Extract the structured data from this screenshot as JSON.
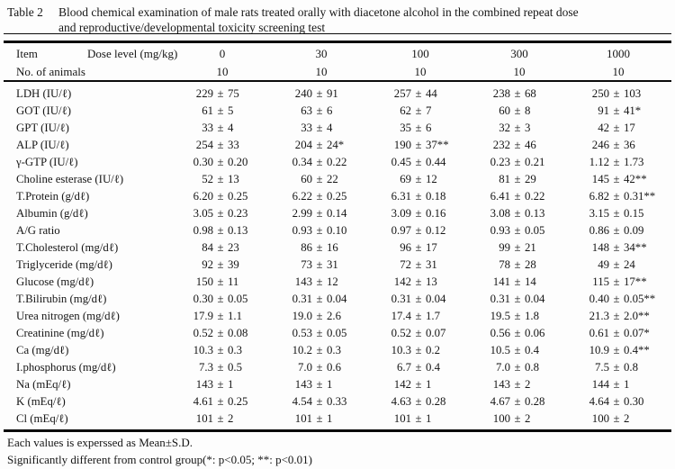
{
  "caption": {
    "table_label": "Table 2",
    "line1": "Blood chemical examination of male rats treated orally with diacetone alcohol in the combined repeat dose",
    "line2": "and reproductive/developmental toxicity screening test"
  },
  "header": {
    "item_label": "Item",
    "dose_label": "Dose level (mg/kg)",
    "doses": [
      "0",
      "30",
      "100",
      "300",
      "1000"
    ],
    "animals_label": "No. of animals",
    "animals": [
      "10",
      "10",
      "10",
      "10",
      "10"
    ]
  },
  "rows": [
    {
      "item": "LDH (IU/ℓ)",
      "values": [
        {
          "m": "229",
          "s": "75",
          "f": ""
        },
        {
          "m": "240",
          "s": "91",
          "f": ""
        },
        {
          "m": "257",
          "s": "44",
          "f": ""
        },
        {
          "m": "238",
          "s": "68",
          "f": ""
        },
        {
          "m": "250",
          "s": "103",
          "f": ""
        }
      ]
    },
    {
      "item": "GOT (IU/ℓ)",
      "values": [
        {
          "m": "61",
          "s": "5",
          "f": ""
        },
        {
          "m": "63",
          "s": "6",
          "f": ""
        },
        {
          "m": "62",
          "s": "7",
          "f": ""
        },
        {
          "m": "60",
          "s": "8",
          "f": ""
        },
        {
          "m": "91",
          "s": "41",
          "f": "*"
        }
      ]
    },
    {
      "item": "GPT (IU/ℓ)",
      "values": [
        {
          "m": "33",
          "s": "4",
          "f": ""
        },
        {
          "m": "33",
          "s": "4",
          "f": ""
        },
        {
          "m": "35",
          "s": "6",
          "f": ""
        },
        {
          "m": "32",
          "s": "3",
          "f": ""
        },
        {
          "m": "42",
          "s": "17",
          "f": ""
        }
      ]
    },
    {
      "item": "ALP (IU/ℓ)",
      "values": [
        {
          "m": "254",
          "s": "33",
          "f": ""
        },
        {
          "m": "204",
          "s": "24",
          "f": "*"
        },
        {
          "m": "190",
          "s": "37",
          "f": "**"
        },
        {
          "m": "232",
          "s": "46",
          "f": ""
        },
        {
          "m": "246",
          "s": "36",
          "f": ""
        }
      ]
    },
    {
      "item": "γ-GTP (IU/ℓ)",
      "values": [
        {
          "m": "0.30",
          "s": "0.20",
          "f": ""
        },
        {
          "m": "0.34",
          "s": "0.22",
          "f": ""
        },
        {
          "m": "0.45",
          "s": "0.44",
          "f": ""
        },
        {
          "m": "0.23",
          "s": "0.21",
          "f": ""
        },
        {
          "m": "1.12",
          "s": "1.73",
          "f": ""
        }
      ]
    },
    {
      "item": "Choline esterase (IU/ℓ)",
      "values": [
        {
          "m": "52",
          "s": "13",
          "f": ""
        },
        {
          "m": "60",
          "s": "22",
          "f": ""
        },
        {
          "m": "69",
          "s": "12",
          "f": ""
        },
        {
          "m": "81",
          "s": "29",
          "f": ""
        },
        {
          "m": "145",
          "s": "42",
          "f": "**"
        }
      ]
    },
    {
      "item": "T.Protein (g/dℓ)",
      "values": [
        {
          "m": "6.20",
          "s": "0.25",
          "f": ""
        },
        {
          "m": "6.22",
          "s": "0.25",
          "f": ""
        },
        {
          "m": "6.31",
          "s": "0.18",
          "f": ""
        },
        {
          "m": "6.41",
          "s": "0.22",
          "f": ""
        },
        {
          "m": "6.82",
          "s": "0.31",
          "f": "**"
        }
      ]
    },
    {
      "item": "Albumin (g/dℓ)",
      "values": [
        {
          "m": "3.05",
          "s": "0.23",
          "f": ""
        },
        {
          "m": "2.99",
          "s": "0.14",
          "f": ""
        },
        {
          "m": "3.09",
          "s": "0.16",
          "f": ""
        },
        {
          "m": "3.08",
          "s": "0.13",
          "f": ""
        },
        {
          "m": "3.15",
          "s": "0.15",
          "f": ""
        }
      ]
    },
    {
      "item": "A/G ratio",
      "values": [
        {
          "m": "0.98",
          "s": "0.13",
          "f": ""
        },
        {
          "m": "0.93",
          "s": "0.10",
          "f": ""
        },
        {
          "m": "0.97",
          "s": "0.12",
          "f": ""
        },
        {
          "m": "0.93",
          "s": "0.05",
          "f": ""
        },
        {
          "m": "0.86",
          "s": "0.09",
          "f": ""
        }
      ]
    },
    {
      "item": "T.Cholesterol (mg/dℓ)",
      "values": [
        {
          "m": "84",
          "s": "23",
          "f": ""
        },
        {
          "m": "86",
          "s": "16",
          "f": ""
        },
        {
          "m": "96",
          "s": "17",
          "f": ""
        },
        {
          "m": "99",
          "s": "21",
          "f": ""
        },
        {
          "m": "148",
          "s": "34",
          "f": "**"
        }
      ]
    },
    {
      "item": "Triglyceride (mg/dℓ)",
      "values": [
        {
          "m": "92",
          "s": "39",
          "f": ""
        },
        {
          "m": "73",
          "s": "31",
          "f": ""
        },
        {
          "m": "72",
          "s": "31",
          "f": ""
        },
        {
          "m": "78",
          "s": "28",
          "f": ""
        },
        {
          "m": "49",
          "s": "24",
          "f": ""
        }
      ]
    },
    {
      "item": "Glucose (mg/dℓ)",
      "values": [
        {
          "m": "150",
          "s": "11",
          "f": ""
        },
        {
          "m": "143",
          "s": "12",
          "f": ""
        },
        {
          "m": "142",
          "s": "13",
          "f": ""
        },
        {
          "m": "141",
          "s": "14",
          "f": ""
        },
        {
          "m": "115",
          "s": "17",
          "f": "**"
        }
      ]
    },
    {
      "item": "T.Bilirubin (mg/dℓ)",
      "values": [
        {
          "m": "0.30",
          "s": "0.05",
          "f": ""
        },
        {
          "m": "0.31",
          "s": "0.04",
          "f": ""
        },
        {
          "m": "0.31",
          "s": "0.04",
          "f": ""
        },
        {
          "m": "0.31",
          "s": "0.04",
          "f": ""
        },
        {
          "m": "0.40",
          "s": "0.05",
          "f": "**"
        }
      ]
    },
    {
      "item": "Urea nitrogen (mg/dℓ)",
      "values": [
        {
          "m": "17.9",
          "s": "1.1",
          "f": ""
        },
        {
          "m": "19.0",
          "s": "2.6",
          "f": ""
        },
        {
          "m": "17.4",
          "s": "1.7",
          "f": ""
        },
        {
          "m": "19.5",
          "s": "1.8",
          "f": ""
        },
        {
          "m": "21.3",
          "s": "2.0",
          "f": "**"
        }
      ]
    },
    {
      "item": "Creatinine (mg/dℓ)",
      "values": [
        {
          "m": "0.52",
          "s": "0.08",
          "f": ""
        },
        {
          "m": "0.53",
          "s": "0.05",
          "f": ""
        },
        {
          "m": "0.52",
          "s": "0.07",
          "f": ""
        },
        {
          "m": "0.56",
          "s": "0.06",
          "f": ""
        },
        {
          "m": "0.61",
          "s": "0.07",
          "f": "*"
        }
      ]
    },
    {
      "item": "Ca (mg/dℓ)",
      "values": [
        {
          "m": "10.3",
          "s": "0.3",
          "f": ""
        },
        {
          "m": "10.2",
          "s": "0.3",
          "f": ""
        },
        {
          "m": "10.3",
          "s": "0.2",
          "f": ""
        },
        {
          "m": "10.5",
          "s": "0.4",
          "f": ""
        },
        {
          "m": "10.9",
          "s": "0.4",
          "f": "**"
        }
      ]
    },
    {
      "item": "I.phosphorus (mg/dℓ)",
      "values": [
        {
          "m": "7.3",
          "s": "0.5",
          "f": ""
        },
        {
          "m": "7.0",
          "s": "0.6",
          "f": ""
        },
        {
          "m": "6.7",
          "s": "0.4",
          "f": ""
        },
        {
          "m": "7.0",
          "s": "0.8",
          "f": ""
        },
        {
          "m": "7.5",
          "s": "0.8",
          "f": ""
        }
      ]
    },
    {
      "item": "Na (mEq/ℓ)",
      "values": [
        {
          "m": "143",
          "s": "1",
          "f": ""
        },
        {
          "m": "143",
          "s": "1",
          "f": ""
        },
        {
          "m": "142",
          "s": "1",
          "f": ""
        },
        {
          "m": "143",
          "s": "2",
          "f": ""
        },
        {
          "m": "144",
          "s": "1",
          "f": ""
        }
      ]
    },
    {
      "item": "K (mEq/ℓ)",
      "values": [
        {
          "m": "4.61",
          "s": "0.25",
          "f": ""
        },
        {
          "m": "4.54",
          "s": "0.33",
          "f": ""
        },
        {
          "m": "4.63",
          "s": "0.28",
          "f": ""
        },
        {
          "m": "4.67",
          "s": "0.28",
          "f": ""
        },
        {
          "m": "4.64",
          "s": "0.30",
          "f": ""
        }
      ]
    },
    {
      "item": "Cl (mEq/ℓ)",
      "values": [
        {
          "m": "101",
          "s": "2",
          "f": ""
        },
        {
          "m": "101",
          "s": "1",
          "f": ""
        },
        {
          "m": "101",
          "s": "1",
          "f": ""
        },
        {
          "m": "100",
          "s": "2",
          "f": ""
        },
        {
          "m": "100",
          "s": "2",
          "f": ""
        }
      ]
    }
  ],
  "footnotes": {
    "line1": "Each values is experssed as Mean±S.D.",
    "line2": "Significantly different from control group(*: p<0.05;  **: p<0.01)"
  },
  "colors": {
    "background": "#fdfdfd",
    "text": "#161616",
    "rule": "#0b0b0b"
  }
}
